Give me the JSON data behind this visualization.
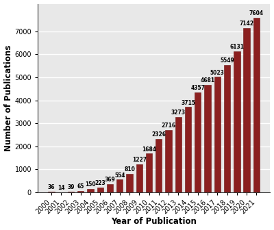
{
  "years": [
    "2000",
    "2001",
    "2002",
    "2003",
    "2004",
    "2005",
    "2006",
    "2007",
    "2008",
    "2009",
    "2010",
    "2011",
    "2012",
    "2013",
    "2014",
    "2015",
    "2016",
    "2017",
    "2018",
    "2019",
    "2020",
    "2021"
  ],
  "values": [
    36,
    14,
    39,
    65,
    150,
    223,
    369,
    554,
    810,
    1227,
    1684,
    2326,
    2716,
    3273,
    3715,
    4357,
    4681,
    5023,
    5549,
    6131,
    7142,
    7604
  ],
  "bar_color": "#8B2020",
  "bar_edge_color": "#6b1515",
  "xlabel": "Year of Publication",
  "ylabel": "Number of Publications",
  "ylim": [
    0,
    8200
  ],
  "yticks": [
    0,
    1000,
    2000,
    3000,
    4000,
    5000,
    6000,
    7000
  ],
  "plot_bg_color": "#e8e8e8",
  "fig_bg_color": "#ffffff",
  "grid_color": "#ffffff",
  "label_fontsize": 5.5,
  "axis_label_fontsize": 8.5,
  "tick_fontsize": 7.0,
  "bar_width": 0.65
}
